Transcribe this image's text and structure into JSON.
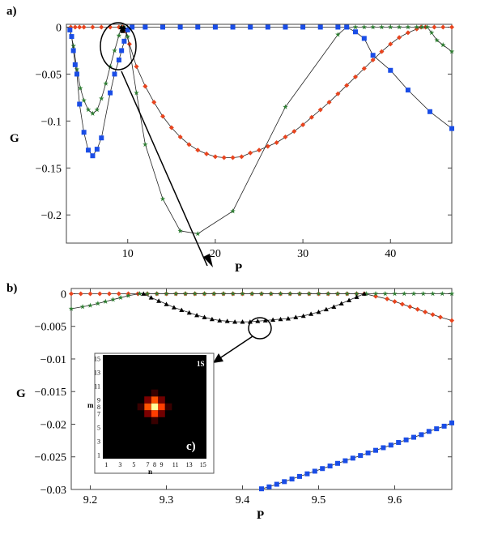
{
  "chart_data": [
    {
      "panel": "a)",
      "type": "line",
      "xlabel": "P",
      "ylabel": "G",
      "xlim": [
        3,
        47
      ],
      "ylim": [
        -0.23,
        0.003
      ],
      "xticks": [
        10,
        20,
        30,
        40
      ],
      "yticks": [
        0,
        -0.05,
        -0.1,
        -0.15,
        -0.2
      ],
      "ytick_labels": [
        "0",
        "−0.05",
        "−0.1",
        "−0.15",
        "−0.2"
      ],
      "series": [
        {
          "color": "#e8441e",
          "marker": "diamond",
          "points": [
            [
              3.5,
              0
            ],
            [
              4,
              0
            ],
            [
              4.5,
              0
            ],
            [
              5,
              0
            ],
            [
              6,
              0
            ],
            [
              7,
              0
            ],
            [
              8,
              0
            ],
            [
              9,
              0
            ],
            [
              9.4,
              0
            ],
            [
              9.7,
              -0.004
            ],
            [
              10.2,
              -0.018
            ],
            [
              11,
              -0.042
            ],
            [
              12,
              -0.063
            ],
            [
              13,
              -0.08
            ],
            [
              14,
              -0.095
            ],
            [
              15,
              -0.107
            ],
            [
              16,
              -0.117
            ],
            [
              17,
              -0.125
            ],
            [
              18,
              -0.131
            ],
            [
              19,
              -0.135
            ],
            [
              20,
              -0.138
            ],
            [
              21,
              -0.139
            ],
            [
              22,
              -0.139
            ],
            [
              23,
              -0.138
            ],
            [
              24,
              -0.134
            ],
            [
              25,
              -0.131
            ],
            [
              26,
              -0.127
            ],
            [
              27,
              -0.123
            ],
            [
              28,
              -0.117
            ],
            [
              29,
              -0.111
            ],
            [
              30,
              -0.104
            ],
            [
              31,
              -0.096
            ],
            [
              32,
              -0.088
            ],
            [
              33,
              -0.08
            ],
            [
              34,
              -0.071
            ],
            [
              35,
              -0.062
            ],
            [
              36,
              -0.053
            ],
            [
              37,
              -0.044
            ],
            [
              38,
              -0.035
            ],
            [
              39,
              -0.026
            ],
            [
              40,
              -0.018
            ],
            [
              41,
              -0.011
            ],
            [
              42,
              -0.006
            ],
            [
              43,
              -0.002
            ],
            [
              43.5,
              0
            ],
            [
              44,
              0
            ],
            [
              45,
              0
            ],
            [
              46,
              0
            ],
            [
              47,
              0
            ]
          ]
        },
        {
          "color": "#2e7d32",
          "marker": "star",
          "points": [
            [
              3.4,
              -0.002
            ],
            [
              3.8,
              -0.02
            ],
            [
              4.2,
              -0.045
            ],
            [
              4.6,
              -0.065
            ],
            [
              5,
              -0.078
            ],
            [
              5.5,
              -0.088
            ],
            [
              6,
              -0.092
            ],
            [
              6.5,
              -0.088
            ],
            [
              7,
              -0.076
            ],
            [
              7.5,
              -0.06
            ],
            [
              8,
              -0.042
            ],
            [
              8.5,
              -0.025
            ],
            [
              9,
              -0.009
            ],
            [
              9.27,
              0
            ],
            [
              9.56,
              0
            ],
            [
              10,
              -0.01
            ],
            [
              11,
              -0.07
            ],
            [
              12,
              -0.125
            ],
            [
              14,
              -0.183
            ],
            [
              16,
              -0.217
            ],
            [
              18,
              -0.22
            ],
            [
              22,
              -0.196
            ],
            [
              28,
              -0.085
            ],
            [
              34,
              -0.008
            ],
            [
              35,
              0
            ],
            [
              36,
              0
            ],
            [
              37,
              0
            ],
            [
              38,
              0
            ],
            [
              39,
              0
            ],
            [
              40,
              0
            ],
            [
              41,
              0
            ],
            [
              42,
              0
            ],
            [
              43,
              0
            ],
            [
              43.6,
              0
            ],
            [
              44.2,
              0
            ],
            [
              44.7,
              -0.006
            ],
            [
              45.3,
              -0.014
            ],
            [
              46,
              -0.019
            ],
            [
              47,
              -0.026
            ]
          ]
        },
        {
          "color": "#1a4de6",
          "marker": "square",
          "points": [
            [
              3.4,
              -0.003
            ],
            [
              3.6,
              -0.01
            ],
            [
              3.8,
              -0.025
            ],
            [
              4,
              -0.04
            ],
            [
              4.2,
              -0.05
            ],
            [
              4.5,
              -0.082
            ],
            [
              5,
              -0.112
            ],
            [
              5.5,
              -0.131
            ],
            [
              6,
              -0.137
            ],
            [
              6.5,
              -0.13
            ],
            [
              7,
              -0.118
            ],
            [
              8,
              -0.07
            ],
            [
              8.5,
              -0.05
            ],
            [
              9,
              -0.035
            ],
            [
              9.3,
              -0.025
            ],
            [
              9.6,
              -0.015
            ],
            [
              10,
              -0.003
            ],
            [
              10.5,
              0
            ],
            [
              12,
              0
            ],
            [
              14,
              0
            ],
            [
              16,
              0
            ],
            [
              18,
              0
            ],
            [
              20,
              0
            ],
            [
              22,
              0
            ],
            [
              24,
              0
            ],
            [
              26,
              0
            ],
            [
              28,
              0
            ],
            [
              30,
              0
            ],
            [
              32,
              0
            ],
            [
              34,
              0
            ],
            [
              35,
              0
            ],
            [
              36,
              -0.005
            ],
            [
              37,
              -0.012
            ],
            [
              38,
              -0.03
            ],
            [
              40,
              -0.046
            ],
            [
              42,
              -0.067
            ],
            [
              44.5,
              -0.09
            ],
            [
              47,
              -0.108
            ]
          ]
        },
        {
          "color": "#000000",
          "marker": "triangle",
          "points": [
            [
              9.27,
              0
            ],
            [
              9.35,
              -0.0025
            ],
            [
              9.42,
              -0.0042
            ],
            [
              9.49,
              -0.0025
            ],
            [
              9.56,
              0
            ]
          ]
        }
      ]
    },
    {
      "panel": "b)",
      "type": "line",
      "xlabel": "P",
      "ylabel": "G",
      "xlim": [
        9.175,
        9.675
      ],
      "ylim": [
        -0.03,
        0.0008
      ],
      "xticks": [
        9.2,
        9.3,
        9.4,
        9.5,
        9.6
      ],
      "yticks": [
        0,
        -0.005,
        -0.01,
        -0.015,
        -0.02,
        -0.025,
        -0.03
      ],
      "ytick_labels": [
        "0",
        "−0.005",
        "−0.01",
        "−0.015",
        "−0.02",
        "−0.025",
        "−0.03"
      ],
      "series": [
        {
          "color": "#e8441e",
          "marker": "diamond",
          "segments": [
            {
              "from": 9.175,
              "to": 9.56,
              "step": 0.0125,
              "values": "zero"
            },
            {
              "points": [
                [
                  9.56,
                  0
                ],
                [
                  9.575,
                  -0.0004
                ],
                [
                  9.59,
                  -0.0008
                ],
                [
                  9.6,
                  -0.0012
                ],
                [
                  9.61,
                  -0.0016
                ],
                [
                  9.62,
                  -0.002
                ],
                [
                  9.63,
                  -0.0024
                ],
                [
                  9.64,
                  -0.0028
                ],
                [
                  9.65,
                  -0.0032
                ],
                [
                  9.66,
                  -0.0036
                ],
                [
                  9.675,
                  -0.0041
                ]
              ]
            }
          ]
        },
        {
          "color": "#2e7d32",
          "marker": "star",
          "segments": [
            {
              "points": [
                [
                  9.175,
                  -0.0023
                ],
                [
                  9.19,
                  -0.002
                ],
                [
                  9.2,
                  -0.0018
                ],
                [
                  9.21,
                  -0.0015
                ],
                [
                  9.22,
                  -0.0012
                ],
                [
                  9.23,
                  -0.0009
                ],
                [
                  9.24,
                  -0.0006
                ],
                [
                  9.25,
                  -0.0003
                ],
                [
                  9.265,
                  0
                ]
              ]
            },
            {
              "from": 9.275,
              "to": 9.675,
              "step": 0.0125,
              "values": "zero"
            }
          ]
        },
        {
          "color": "#000000",
          "marker": "triangle",
          "points": [
            [
              9.27,
              0
            ],
            [
              9.28,
              -0.0006
            ],
            [
              9.29,
              -0.0011
            ],
            [
              9.3,
              -0.0016
            ],
            [
              9.31,
              -0.0021
            ],
            [
              9.32,
              -0.0025
            ],
            [
              9.33,
              -0.0029
            ],
            [
              9.34,
              -0.0033
            ],
            [
              9.35,
              -0.0036
            ],
            [
              9.36,
              -0.0039
            ],
            [
              9.37,
              -0.0041
            ],
            [
              9.38,
              -0.0042
            ],
            [
              9.39,
              -0.0043
            ],
            [
              9.4,
              -0.0043
            ],
            [
              9.41,
              -0.0043
            ],
            [
              9.42,
              -0.0042
            ],
            [
              9.43,
              -0.0041
            ],
            [
              9.44,
              -0.004
            ],
            [
              9.45,
              -0.0039
            ],
            [
              9.46,
              -0.0038
            ],
            [
              9.47,
              -0.0036
            ],
            [
              9.48,
              -0.0034
            ],
            [
              9.49,
              -0.0031
            ],
            [
              9.5,
              -0.0028
            ],
            [
              9.51,
              -0.0024
            ],
            [
              9.52,
              -0.002
            ],
            [
              9.53,
              -0.0015
            ],
            [
              9.54,
              -0.001
            ],
            [
              9.55,
              -0.0005
            ],
            [
              9.56,
              0
            ]
          ]
        },
        {
          "color": "#1a4de6",
          "marker": "square",
          "points": [
            [
              9.425,
              -0.0299
            ],
            [
              9.435,
              -0.0296
            ],
            [
              9.445,
              -0.0292
            ],
            [
              9.455,
              -0.0288
            ],
            [
              9.465,
              -0.0284
            ],
            [
              9.475,
              -0.028
            ],
            [
              9.485,
              -0.0276
            ],
            [
              9.495,
              -0.0272
            ],
            [
              9.505,
              -0.0268
            ],
            [
              9.515,
              -0.0264
            ],
            [
              9.525,
              -0.026
            ],
            [
              9.535,
              -0.0256
            ],
            [
              9.545,
              -0.0252
            ],
            [
              9.555,
              -0.0248
            ],
            [
              9.565,
              -0.0244
            ],
            [
              9.575,
              -0.024
            ],
            [
              9.585,
              -0.0236
            ],
            [
              9.595,
              -0.0232
            ],
            [
              9.605,
              -0.0228
            ],
            [
              9.615,
              -0.0224
            ],
            [
              9.625,
              -0.022
            ],
            [
              9.635,
              -0.0216
            ],
            [
              9.645,
              -0.0211
            ],
            [
              9.655,
              -0.0207
            ],
            [
              9.665,
              -0.0203
            ],
            [
              9.675,
              -0.0198
            ]
          ]
        }
      ]
    },
    {
      "panel": "c)",
      "type": "heatmap",
      "corner_label": "1S",
      "xlabel": "n",
      "ylabel": "m",
      "grid": 15,
      "xtick_labels": [
        "1",
        "3",
        "5",
        "7",
        "8",
        "9",
        "11",
        "13",
        "15"
      ],
      "xtick_values": [
        1,
        3,
        5,
        7,
        8,
        9,
        11,
        13,
        15
      ],
      "ytick_labels": [
        "1",
        "3",
        "5",
        "7",
        "8",
        "9",
        "11",
        "13",
        "15"
      ],
      "ytick_values": [
        1,
        3,
        5,
        7,
        8,
        9,
        11,
        13,
        15
      ],
      "cells": [
        [
          8,
          8,
          1.0
        ],
        [
          7,
          8,
          0.55
        ],
        [
          9,
          8,
          0.5
        ],
        [
          8,
          7,
          0.5
        ],
        [
          8,
          9,
          0.55
        ],
        [
          7,
          7,
          0.22
        ],
        [
          9,
          7,
          0.2
        ],
        [
          7,
          9,
          0.22
        ],
        [
          9,
          9,
          0.2
        ],
        [
          6,
          8,
          0.1
        ],
        [
          10,
          8,
          0.1
        ],
        [
          8,
          6,
          0.1
        ],
        [
          8,
          10,
          0.1
        ]
      ]
    }
  ]
}
